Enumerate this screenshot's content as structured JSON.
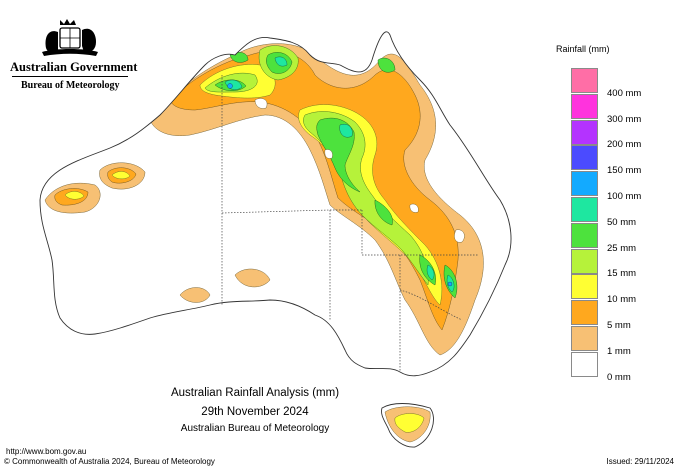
{
  "header": {
    "gov_line1": "Australian Government",
    "gov_line2": "Bureau of Meteorology",
    "crest_icon": "coat-of-arms-icon"
  },
  "map": {
    "title_line1": "Australian Rainfall Analysis (mm)",
    "title_line2": "29th November 2024",
    "title_line3": "Australian Bureau of Meteorology",
    "region": "Australia",
    "variable": "Rainfall (mm)"
  },
  "legend": {
    "title": "Rainfall (mm)",
    "items": [
      {
        "label": "",
        "color": "#ff6ea6"
      },
      {
        "label": "400 mm",
        "color": "#ff33dd"
      },
      {
        "label": "300 mm",
        "color": "#b433ff"
      },
      {
        "label": "200 mm",
        "color": "#4b4bff"
      },
      {
        "label": "150 mm",
        "color": "#13aaff"
      },
      {
        "label": "100 mm",
        "color": "#1ee7a0"
      },
      {
        "label": "50 mm",
        "color": "#4de23d"
      },
      {
        "label": "25 mm",
        "color": "#b6f23a"
      },
      {
        "label": "15 mm",
        "color": "#ffff33"
      },
      {
        "label": "10 mm",
        "color": "#ffa81e"
      },
      {
        "label": "5 mm",
        "color": "#f7c074"
      },
      {
        "label": "1 mm",
        "color": "#ffffff"
      },
      {
        "label": "0 mm",
        "color": ""
      }
    ]
  },
  "footer": {
    "url": "http://www.bom.gov.au",
    "copyright": "© Commonwealth of Australia 2024, Bureau of Meteorology",
    "issued": "Issued: 29/11/2024"
  }
}
